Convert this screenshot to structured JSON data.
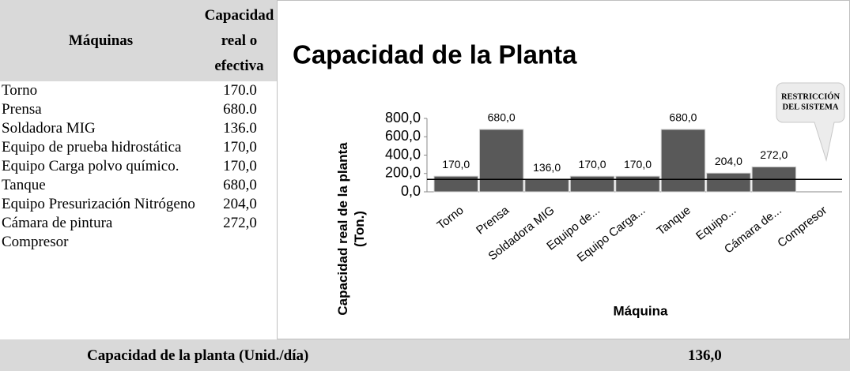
{
  "table": {
    "header": [
      "Máquinas",
      "Capacidad real o efectiva"
    ],
    "rows": [
      [
        "Torno",
        "170.0"
      ],
      [
        "Prensa",
        "680.0"
      ],
      [
        "Soldadora MIG",
        "136.0"
      ],
      [
        "Equipo de prueba hidrostática",
        "170,0"
      ],
      [
        "Equipo Carga polvo químico.",
        "170,0"
      ],
      [
        "Tanque",
        "680,0"
      ],
      [
        "Equipo Presurización Nitrógeno",
        "204,0"
      ],
      [
        "Cámara de pintura",
        "272,0"
      ],
      [
        "Compresor",
        ""
      ]
    ],
    "footer": [
      "Capacidad de la planta (Unid./día)",
      "136,0"
    ]
  },
  "chart_data": {
    "type": "bar",
    "title": "Capacidad de la Planta",
    "y_label": [
      "Capacidad real de la planta",
      "(Ton.)"
    ],
    "x_label": "Máquina",
    "categories": [
      "Torno",
      "Prensa",
      "Soldadora MIG",
      "Equipo de...",
      "Equipo Carga...",
      "Tanque",
      "Equipo...",
      "Cámara de...",
      "Compresor"
    ],
    "values": [
      170,
      680,
      136,
      170,
      170,
      680,
      204,
      272,
      null
    ],
    "value_labels": [
      "170,0",
      "680,0",
      "136,0",
      "170,0",
      "170,0",
      "680,0",
      "204,0",
      "272,0",
      null
    ],
    "color": "#595959",
    "ylim": [
      0,
      800
    ],
    "yticks": [
      {
        "value": 0,
        "label": "0,0"
      },
      {
        "value": 200,
        "label": "200,0"
      },
      {
        "value": 400,
        "label": "400,0"
      },
      {
        "value": 600,
        "label": "600,0"
      },
      {
        "value": 800,
        "label": "800,0"
      }
    ],
    "reference_line": {
      "value": 136,
      "label": [
        "RESTRICCIÓN",
        "DEL SISTEMA"
      ]
    }
  }
}
